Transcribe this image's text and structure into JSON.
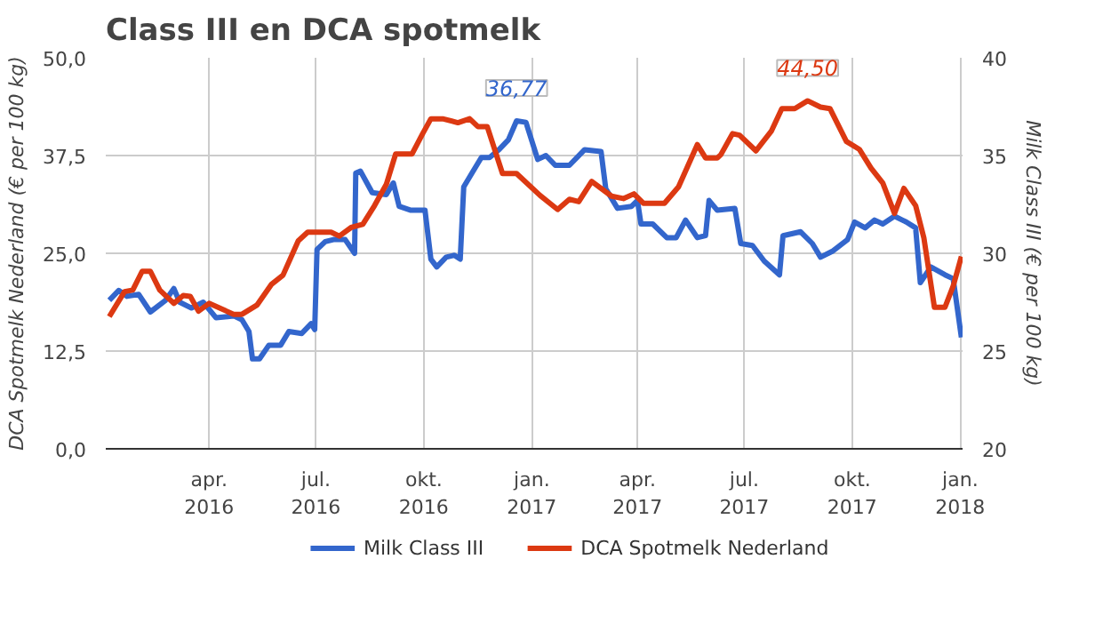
{
  "chart_data": {
    "type": "line",
    "title": "Class III en DCA spotmelk",
    "ylabel": "DCA Spotmelk Nederland (€ per 100 kg)",
    "y2label": "Milk Class III (€ per 100 kg)",
    "xlim": [
      "2016-01-04",
      "2018-01-03"
    ],
    "xticks": [
      {
        "value": "2016-04-01",
        "label": "apr.\n2016"
      },
      {
        "value": "2016-07-01",
        "label": "jul.\n2016"
      },
      {
        "value": "2016-10-01",
        "label": "okt.\n2016"
      },
      {
        "value": "2017-01-01",
        "label": "jan.\n2017"
      },
      {
        "value": "2017-04-01",
        "label": "apr.\n2017"
      },
      {
        "value": "2017-07-01",
        "label": "jul.\n2017"
      },
      {
        "value": "2017-10-01",
        "label": "okt.\n2017"
      },
      {
        "value": "2018-01-01",
        "label": "jan.\n2018"
      }
    ],
    "ylim": [
      0,
      50
    ],
    "yticks": [
      {
        "value": 0,
        "label": "0,0"
      },
      {
        "value": 12.5,
        "label": "12,5"
      },
      {
        "value": 25,
        "label": "25,0"
      },
      {
        "value": 37.5,
        "label": "37,5"
      },
      {
        "value": 50,
        "label": "50,0"
      }
    ],
    "y2lim": [
      20,
      40
    ],
    "y2ticks": [
      20,
      25,
      30,
      35,
      40
    ],
    "grid": true,
    "legend": "bottom",
    "line_style": "solid",
    "series": [
      {
        "name": "Milk Class III",
        "color": "#3366cc",
        "axis": "y2",
        "x": [
          "2016-01-07",
          "2016-01-15",
          "2016-01-22",
          "2016-02-01",
          "2016-02-11",
          "2016-02-24",
          "2016-03-02",
          "2016-03-07",
          "2016-03-17",
          "2016-03-27",
          "2016-04-07",
          "2016-04-22",
          "2016-04-29",
          "2016-05-05",
          "2016-05-08",
          "2016-05-14",
          "2016-05-22",
          "2016-06-01",
          "2016-06-08",
          "2016-06-19",
          "2016-06-27",
          "2016-06-30",
          "2016-07-02",
          "2016-07-09",
          "2016-07-16",
          "2016-07-26",
          "2016-08-03",
          "2016-08-04",
          "2016-08-08",
          "2016-08-18",
          "2016-08-30",
          "2016-09-05",
          "2016-09-10",
          "2016-09-20",
          "2016-10-02",
          "2016-10-07",
          "2016-10-12",
          "2016-10-20",
          "2016-10-27",
          "2016-11-01",
          "2016-11-04",
          "2016-11-11",
          "2016-11-19",
          "2016-11-26",
          "2016-12-04",
          "2016-12-12",
          "2016-12-19",
          "2016-12-27",
          "2017-01-06",
          "2017-01-13",
          "2017-01-21",
          "2017-02-02",
          "2017-02-15",
          "2017-03-01",
          "2017-03-05",
          "2017-03-15",
          "2017-03-27",
          "2017-04-01",
          "2017-04-04",
          "2017-04-14",
          "2017-04-26",
          "2017-05-04",
          "2017-05-12",
          "2017-05-22",
          "2017-05-29",
          "2017-06-01",
          "2017-06-08",
          "2017-06-23",
          "2017-06-28",
          "2017-07-08",
          "2017-07-18",
          "2017-07-31",
          "2017-08-03",
          "2017-08-18",
          "2017-08-28",
          "2017-09-04",
          "2017-09-14",
          "2017-09-27",
          "2017-10-03",
          "2017-10-12",
          "2017-10-20",
          "2017-10-27",
          "2017-11-06",
          "2017-11-16",
          "2017-11-24",
          "2017-11-28",
          "2017-12-07",
          "2017-12-19",
          "2017-12-26",
          "2018-01-02"
        ],
        "values": [
          27.6,
          28.1,
          27.8,
          27.9,
          27.0,
          27.6,
          28.2,
          27.5,
          27.2,
          27.5,
          26.7,
          26.8,
          26.6,
          26.0,
          24.6,
          24.6,
          25.3,
          25.3,
          26.0,
          25.9,
          26.4,
          26.1,
          30.2,
          30.6,
          30.7,
          30.7,
          30.0,
          34.1,
          34.2,
          33.1,
          33.0,
          33.6,
          32.4,
          32.2,
          32.2,
          29.7,
          29.3,
          29.8,
          29.9,
          29.7,
          33.4,
          34.1,
          34.9,
          34.9,
          35.3,
          35.8,
          36.77,
          36.7,
          34.8,
          35.0,
          34.5,
          34.5,
          35.3,
          35.2,
          33.3,
          32.3,
          32.4,
          32.7,
          31.5,
          31.5,
          30.8,
          30.8,
          31.7,
          30.8,
          30.9,
          32.7,
          32.2,
          32.3,
          30.5,
          30.4,
          29.6,
          28.9,
          30.9,
          31.1,
          30.5,
          29.8,
          30.1,
          30.7,
          31.6,
          31.3,
          31.7,
          31.5,
          31.9,
          31.6,
          31.3,
          28.5,
          29.3,
          28.9,
          28.7,
          25.7
        ],
        "value_labels": [
          null,
          null,
          null,
          null,
          null,
          null,
          null,
          null,
          null,
          null,
          null,
          null,
          null,
          null,
          null,
          null,
          null,
          null,
          null,
          null,
          null,
          null,
          null,
          null,
          null,
          null,
          null,
          null,
          null,
          null,
          null,
          null,
          null,
          null,
          null,
          null,
          null,
          null,
          null,
          null,
          null,
          null,
          null,
          null,
          null,
          null,
          "36,77",
          null,
          null,
          null,
          null,
          null,
          null,
          null,
          null,
          null,
          null,
          null,
          null,
          null,
          null,
          null,
          null,
          null,
          null,
          null,
          null,
          null,
          null,
          null,
          null,
          null,
          null,
          null,
          null,
          null,
          null,
          null,
          null,
          null,
          null,
          null,
          null,
          null,
          null,
          null,
          null,
          null,
          null,
          null
        ]
      },
      {
        "name": "DCA Spotmelk Nederland",
        "color": "#dc3912",
        "x": [
          "2016-01-07",
          "2016-01-20",
          "2016-01-27",
          "2016-02-04",
          "2016-02-11",
          "2016-02-19",
          "2016-03-02",
          "2016-03-10",
          "2016-03-16",
          "2016-03-23",
          "2016-04-01",
          "2016-04-22",
          "2016-04-29",
          "2016-05-12",
          "2016-05-24",
          "2016-06-03",
          "2016-06-16",
          "2016-06-24",
          "2016-07-14",
          "2016-07-21",
          "2016-07-31",
          "2016-08-10",
          "2016-08-20",
          "2016-08-30",
          "2016-09-07",
          "2016-09-21",
          "2016-09-30",
          "2016-10-07",
          "2016-10-17",
          "2016-10-30",
          "2016-11-09",
          "2016-11-16",
          "2016-11-24",
          "2016-12-07",
          "2016-12-19",
          "2017-01-08",
          "2017-01-23",
          "2017-02-02",
          "2017-02-10",
          "2017-02-21",
          "2017-03-10",
          "2017-03-20",
          "2017-03-29",
          "2017-04-06",
          "2017-04-24",
          "2017-05-06",
          "2017-05-22",
          "2017-05-29",
          "2017-06-08",
          "2017-06-11",
          "2017-06-21",
          "2017-06-27",
          "2017-07-11",
          "2017-07-24",
          "2017-08-02",
          "2017-08-13",
          "2017-08-24",
          "2017-09-04",
          "2017-09-12",
          "2017-09-26",
          "2017-10-07",
          "2017-10-17",
          "2017-10-27",
          "2017-11-06",
          "2017-11-14",
          "2017-11-24",
          "2017-12-01",
          "2017-12-10",
          "2017-12-19",
          "2017-12-26",
          "2018-01-02"
        ],
        "values": [
          16.9,
          20.1,
          20.3,
          22.7,
          22.7,
          20.3,
          18.6,
          19.6,
          19.5,
          17.6,
          18.6,
          17.2,
          17.2,
          18.4,
          21.0,
          22.2,
          26.6,
          27.7,
          27.7,
          27.2,
          28.3,
          28.7,
          31.1,
          33.8,
          37.7,
          37.7,
          40.3,
          42.2,
          42.2,
          41.7,
          42.2,
          41.2,
          41.2,
          35.2,
          35.2,
          32.4,
          30.6,
          31.9,
          31.6,
          34.2,
          32.3,
          32.0,
          32.6,
          31.4,
          31.4,
          33.5,
          38.9,
          37.2,
          37.2,
          37.6,
          40.3,
          40.1,
          38.1,
          40.6,
          43.5,
          43.5,
          44.5,
          43.7,
          43.5,
          39.3,
          38.3,
          35.9,
          34.0,
          30.1,
          33.3,
          31.1,
          27.0,
          18.1,
          18.1,
          20.8,
          24.6
        ],
        "value_labels": [
          null,
          null,
          null,
          null,
          null,
          null,
          null,
          null,
          null,
          null,
          null,
          null,
          null,
          null,
          null,
          null,
          null,
          null,
          null,
          null,
          null,
          null,
          null,
          null,
          null,
          null,
          null,
          null,
          null,
          null,
          null,
          null,
          null,
          null,
          null,
          null,
          null,
          null,
          null,
          null,
          null,
          null,
          null,
          null,
          null,
          null,
          null,
          null,
          null,
          null,
          null,
          null,
          null,
          null,
          null,
          null,
          "44,50",
          null,
          null,
          null,
          null,
          null,
          null,
          null,
          null,
          null,
          null,
          null,
          null,
          null,
          null
        ]
      }
    ]
  }
}
